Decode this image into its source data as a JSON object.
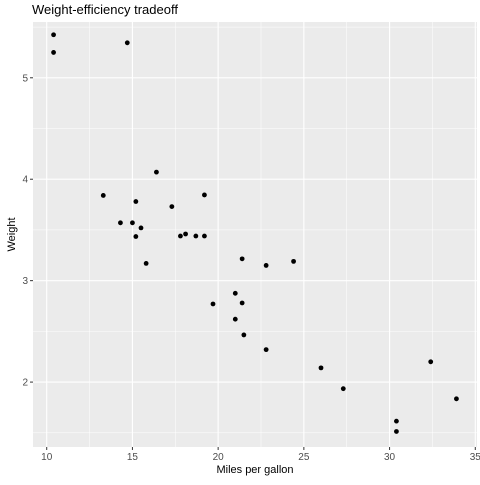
{
  "chart_data": {
    "type": "scatter",
    "title": "Weight-efficiency tradeoff",
    "xlabel": "Miles per gallon",
    "ylabel": "Weight",
    "xlim": [
      9.2,
      35.1
    ],
    "ylim": [
      1.36,
      5.55
    ],
    "xticks": [
      10,
      15,
      20,
      25,
      30,
      35
    ],
    "yticks": [
      2,
      3,
      4,
      5
    ],
    "grid": true,
    "panel_background": "#EBEBEB",
    "grid_color": "#FFFFFF",
    "point_color": "#000000",
    "series": [
      {
        "x": [
          21.0,
          21.0,
          22.8,
          21.4,
          18.7,
          18.1,
          14.3,
          24.4,
          22.8,
          19.2,
          17.8,
          16.4,
          17.3,
          15.2,
          10.4,
          10.4,
          14.7,
          32.4,
          30.4,
          33.9,
          21.5,
          15.5,
          15.2,
          13.3,
          19.2,
          27.3,
          26.0,
          30.4,
          15.8,
          19.7,
          15.0,
          21.4
        ],
        "y": [
          2.62,
          2.875,
          2.32,
          3.215,
          3.44,
          3.46,
          3.57,
          3.19,
          3.15,
          3.44,
          3.44,
          4.07,
          3.73,
          3.78,
          5.25,
          5.424,
          5.345,
          2.2,
          1.615,
          1.835,
          2.465,
          3.52,
          3.435,
          3.84,
          3.845,
          1.935,
          2.14,
          1.513,
          3.17,
          2.77,
          3.57,
          2.78
        ]
      }
    ]
  }
}
